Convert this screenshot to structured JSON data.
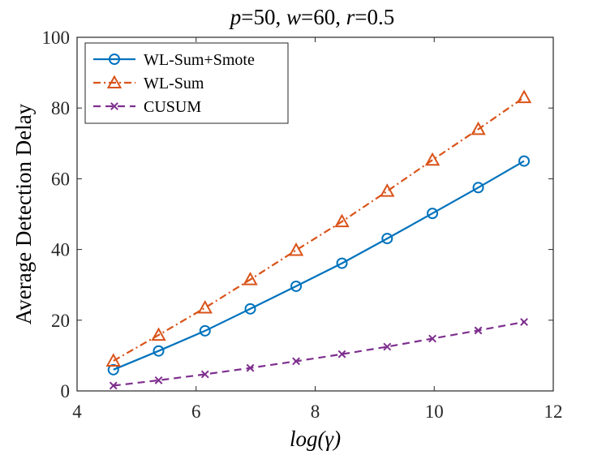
{
  "chart_data": {
    "type": "line",
    "title_parts": [
      {
        "text": "p",
        "italic": true
      },
      {
        "text": "=50, ",
        "italic": false
      },
      {
        "text": "w",
        "italic": true
      },
      {
        "text": "=60, ",
        "italic": false
      },
      {
        "text": "r",
        "italic": true
      },
      {
        "text": "=0.5",
        "italic": false
      }
    ],
    "xlabel": "log(γ)",
    "ylabel": "Average Detection Delay",
    "xlim": [
      4,
      12
    ],
    "ylim": [
      0,
      100
    ],
    "xticks": [
      4,
      6,
      8,
      10,
      12
    ],
    "yticks": [
      0,
      20,
      40,
      60,
      80,
      100
    ],
    "grid": false,
    "legend_position": "top-left",
    "x": [
      4.61,
      5.37,
      6.15,
      6.91,
      7.68,
      8.45,
      9.21,
      9.97,
      10.74,
      11.51
    ],
    "series": [
      {
        "name": "WL-Sum+Smote",
        "color": "#0072BD",
        "line_style": "solid",
        "marker": "circle",
        "values": [
          6.0,
          11.3,
          17.0,
          23.2,
          29.6,
          36.1,
          43.1,
          50.2,
          57.5,
          65.0
        ]
      },
      {
        "name": "WL-Sum",
        "color": "#D95319",
        "line_style": "dash-dot",
        "marker": "triangle",
        "values": [
          8.5,
          15.8,
          23.5,
          31.5,
          39.8,
          47.9,
          56.5,
          65.3,
          74.0,
          83.0
        ]
      },
      {
        "name": "CUSUM",
        "color": "#7E2F8E",
        "line_style": "dashed",
        "marker": "x",
        "values": [
          1.5,
          3.0,
          4.7,
          6.5,
          8.4,
          10.4,
          12.5,
          14.8,
          17.1,
          19.5
        ]
      }
    ]
  }
}
